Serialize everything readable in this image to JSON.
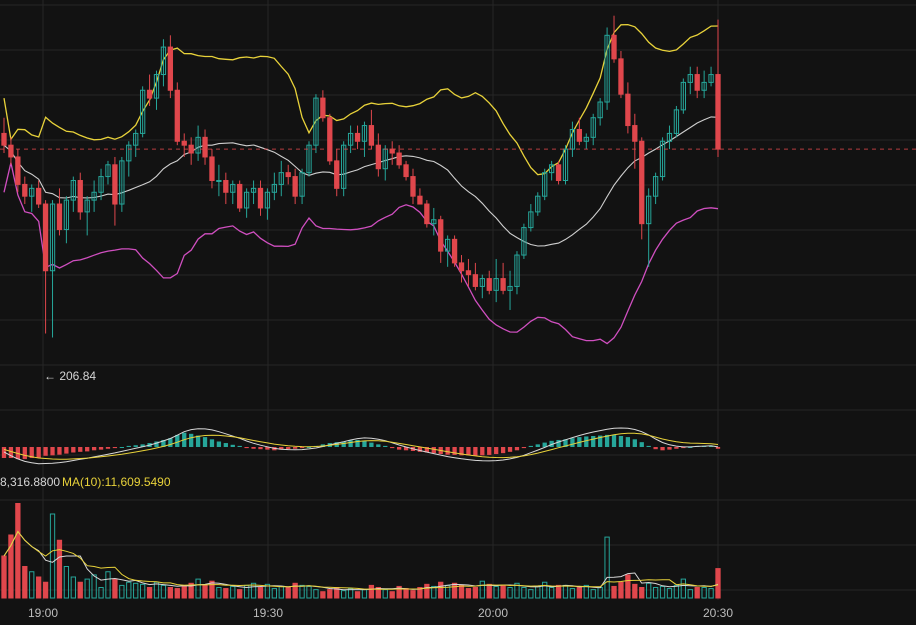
{
  "colors": {
    "background": "#121212",
    "grid": "#262626",
    "up": "#26a69a",
    "down": "#e0474c",
    "bb_upper": "#e8d23a",
    "bb_mid": "#cfcfcf",
    "bb_lower": "#d04fc0",
    "last_price_line": "#e0474c"
  },
  "chart_data": [
    {
      "type": "candlestick",
      "indicator": "Bollinger Bands",
      "x_axis_ticks": [
        "19:00",
        "19:30",
        "20:00",
        "20:30"
      ],
      "price_ylim": [
        203,
        224
      ],
      "min_price_marker": {
        "text": "← 206.84",
        "value": 206.84,
        "time_index": 7
      },
      "last_price": 216.4,
      "ohlc": [
        [
          217.2,
          218.0,
          216.2,
          216.6
        ],
        [
          216.6,
          217.0,
          215.6,
          216.0
        ],
        [
          216.0,
          216.4,
          214.2,
          214.6
        ],
        [
          214.6,
          215.0,
          213.6,
          214.0
        ],
        [
          214.0,
          214.6,
          213.2,
          214.4
        ],
        [
          214.4,
          214.8,
          213.4,
          213.6
        ],
        [
          213.6,
          213.8,
          207.0,
          210.2
        ],
        [
          210.2,
          213.8,
          206.8,
          213.6
        ],
        [
          213.6,
          214.4,
          212.0,
          212.3
        ],
        [
          212.3,
          214.0,
          211.6,
          213.8
        ],
        [
          213.8,
          215.0,
          213.2,
          214.8
        ],
        [
          214.8,
          215.2,
          212.8,
          213.2
        ],
        [
          213.2,
          214.0,
          212.0,
          213.8
        ],
        [
          213.8,
          214.8,
          213.2,
          214.2
        ],
        [
          214.2,
          215.4,
          213.8,
          215.0
        ],
        [
          215.0,
          215.8,
          214.6,
          215.6
        ],
        [
          215.6,
          216.0,
          212.5,
          213.6
        ],
        [
          213.6,
          216.0,
          213.2,
          215.8
        ],
        [
          215.8,
          216.8,
          215.0,
          216.6
        ],
        [
          216.6,
          217.4,
          216.0,
          217.2
        ],
        [
          217.2,
          219.6,
          217.0,
          219.4
        ],
        [
          219.4,
          220.2,
          218.6,
          219.0
        ],
        [
          219.0,
          220.4,
          218.4,
          220.2
        ],
        [
          220.2,
          222.0,
          219.6,
          221.6
        ],
        [
          221.6,
          222.2,
          219.0,
          219.4
        ],
        [
          219.4,
          219.8,
          216.6,
          216.8
        ],
        [
          216.8,
          217.2,
          216.0,
          216.6
        ],
        [
          216.6,
          217.0,
          215.6,
          216.2
        ],
        [
          216.2,
          217.6,
          215.8,
          217.0
        ],
        [
          217.0,
          217.4,
          215.6,
          216.0
        ],
        [
          216.0,
          216.4,
          214.4,
          214.8
        ],
        [
          214.8,
          215.6,
          214.0,
          214.8
        ],
        [
          214.8,
          215.2,
          213.6,
          214.2
        ],
        [
          214.2,
          214.8,
          213.6,
          214.6
        ],
        [
          214.6,
          214.8,
          213.2,
          213.4
        ],
        [
          213.4,
          214.4,
          212.9,
          214.2
        ],
        [
          214.2,
          214.8,
          213.6,
          214.4
        ],
        [
          214.4,
          214.8,
          213.0,
          213.4
        ],
        [
          213.4,
          214.4,
          212.8,
          214.2
        ],
        [
          214.2,
          215.2,
          213.8,
          214.6
        ],
        [
          214.6,
          215.8,
          214.0,
          215.2
        ],
        [
          215.2,
          215.6,
          214.6,
          215.0
        ],
        [
          215.0,
          215.4,
          213.6,
          214.0
        ],
        [
          214.0,
          215.4,
          213.6,
          215.2
        ],
        [
          215.2,
          216.8,
          215.0,
          216.6
        ],
        [
          216.6,
          219.2,
          216.2,
          219.0
        ],
        [
          219.0,
          219.4,
          217.8,
          218.0
        ],
        [
          218.0,
          218.2,
          215.6,
          215.8
        ],
        [
          215.8,
          216.4,
          214.0,
          214.4
        ],
        [
          214.4,
          216.8,
          214.0,
          216.6
        ],
        [
          216.6,
          217.6,
          216.2,
          217.2
        ],
        [
          217.2,
          217.6,
          216.4,
          216.8
        ],
        [
          216.8,
          217.8,
          216.0,
          217.6
        ],
        [
          217.6,
          218.4,
          216.4,
          216.6
        ],
        [
          216.6,
          217.2,
          215.0,
          215.4
        ],
        [
          215.4,
          216.6,
          214.8,
          216.4
        ],
        [
          216.4,
          216.8,
          215.6,
          216.2
        ],
        [
          216.2,
          216.6,
          215.4,
          215.6
        ],
        [
          215.6,
          215.8,
          214.8,
          215.0
        ],
        [
          215.0,
          215.4,
          213.6,
          214.0
        ],
        [
          214.0,
          214.4,
          213.6,
          213.6
        ],
        [
          213.6,
          213.8,
          212.4,
          212.6
        ],
        [
          212.6,
          213.4,
          212.0,
          212.8
        ],
        [
          212.8,
          213.0,
          210.6,
          211.2
        ],
        [
          211.2,
          212.0,
          210.4,
          211.8
        ],
        [
          211.8,
          212.0,
          210.4,
          210.6
        ],
        [
          210.6,
          211.0,
          209.6,
          210.2
        ],
        [
          210.2,
          210.8,
          209.4,
          210.0
        ],
        [
          210.0,
          210.6,
          209.2,
          209.4
        ],
        [
          209.4,
          210.0,
          208.8,
          209.8
        ],
        [
          209.8,
          210.2,
          209.0,
          209.2
        ],
        [
          209.2,
          210.8,
          208.6,
          209.8
        ],
        [
          209.8,
          210.6,
          209.0,
          209.2
        ],
        [
          209.2,
          210.2,
          208.2,
          209.4
        ],
        [
          209.4,
          211.2,
          209.0,
          211.0
        ],
        [
          211.0,
          212.6,
          210.8,
          212.4
        ],
        [
          212.4,
          213.6,
          212.2,
          213.2
        ],
        [
          213.2,
          214.2,
          213.0,
          214.0
        ],
        [
          214.0,
          215.4,
          213.8,
          215.2
        ],
        [
          215.2,
          215.8,
          214.8,
          215.6
        ],
        [
          215.6,
          215.8,
          214.6,
          214.8
        ],
        [
          214.8,
          216.6,
          214.6,
          216.4
        ],
        [
          216.4,
          217.8,
          216.0,
          217.4
        ],
        [
          217.4,
          218.0,
          216.6,
          216.8
        ],
        [
          216.8,
          217.2,
          216.4,
          217.0
        ],
        [
          217.0,
          218.2,
          216.6,
          218.0
        ],
        [
          218.0,
          219.0,
          217.6,
          218.8
        ],
        [
          218.8,
          222.6,
          218.4,
          222.2
        ],
        [
          222.2,
          223.2,
          220.8,
          221.0
        ],
        [
          221.0,
          221.4,
          219.0,
          219.2
        ],
        [
          219.2,
          219.8,
          217.2,
          217.6
        ],
        [
          217.6,
          218.2,
          215.4,
          216.8
        ],
        [
          216.8,
          217.0,
          211.8,
          212.6
        ],
        [
          212.6,
          214.4,
          210.4,
          214.0
        ],
        [
          214.0,
          215.2,
          213.6,
          215.0
        ],
        [
          215.0,
          217.0,
          214.8,
          216.8
        ],
        [
          216.8,
          217.6,
          216.4,
          217.2
        ],
        [
          217.2,
          218.6,
          217.0,
          218.4
        ],
        [
          218.4,
          220.0,
          218.2,
          219.8
        ],
        [
          219.8,
          220.6,
          219.2,
          220.2
        ],
        [
          220.2,
          220.6,
          219.0,
          219.4
        ],
        [
          219.4,
          220.4,
          219.0,
          219.8
        ],
        [
          219.8,
          220.6,
          219.6,
          220.2
        ],
        [
          220.2,
          223.0,
          216.0,
          216.4
        ]
      ]
    },
    {
      "type": "bar+line",
      "indicator": "MACD",
      "histogram": [
        -0.5,
        -0.5,
        -0.55,
        -0.55,
        -0.5,
        -0.5,
        -0.4,
        -0.38,
        -0.35,
        -0.3,
        -0.25,
        -0.22,
        -0.2,
        -0.15,
        -0.12,
        -0.08,
        -0.05,
        0.0,
        0.05,
        0.08,
        0.12,
        0.18,
        0.25,
        0.32,
        0.4,
        0.55,
        0.65,
        0.6,
        0.52,
        0.45,
        0.35,
        0.25,
        0.18,
        0.1,
        0.05,
        -0.05,
        -0.08,
        -0.1,
        -0.12,
        -0.15,
        -0.12,
        -0.1,
        -0.08,
        -0.05,
        0.0,
        0.05,
        0.12,
        0.18,
        0.22,
        0.25,
        0.3,
        0.32,
        0.28,
        0.2,
        0.12,
        0.05,
        -0.05,
        -0.12,
        -0.15,
        -0.18,
        -0.22,
        -0.25,
        -0.28,
        -0.32,
        -0.35,
        -0.36,
        -0.38,
        -0.38,
        -0.4,
        -0.38,
        -0.36,
        -0.32,
        -0.28,
        -0.22,
        -0.15,
        -0.05,
        0.05,
        0.12,
        0.2,
        0.28,
        0.32,
        0.35,
        0.4,
        0.45,
        0.48,
        0.5,
        0.52,
        0.55,
        0.55,
        0.5,
        0.45,
        0.35,
        0.22,
        0.05,
        -0.1,
        -0.15,
        -0.12,
        -0.08,
        -0.05,
        0.0,
        0.05,
        0.05,
        0.05,
        -0.08
      ],
      "macd_line_label": "",
      "signal_line_label": ""
    },
    {
      "type": "bar+line",
      "indicator": "Volume",
      "labels": {
        "ma5_partial": "8,316.8800",
        "ma10": "MA(10):11,609.5490"
      },
      "volume": [
        40,
        60,
        90,
        30,
        25,
        20,
        15,
        80,
        55,
        30,
        20,
        15,
        18,
        22,
        10,
        25,
        18,
        12,
        15,
        14,
        13,
        10,
        15,
        12,
        10,
        9,
        12,
        14,
        18,
        12,
        16,
        10,
        9,
        11,
        8,
        12,
        14,
        10,
        13,
        9,
        11,
        10,
        14,
        12,
        11,
        8,
        6,
        8,
        10,
        7,
        9,
        6,
        8,
        12,
        10,
        8,
        6,
        11,
        9,
        7,
        10,
        13,
        11,
        15,
        12,
        14,
        12,
        9,
        10,
        16,
        13,
        11,
        12,
        10,
        14,
        10,
        8,
        11,
        15,
        10,
        12,
        12,
        9,
        10,
        12,
        8,
        10,
        58,
        11,
        15,
        22,
        13,
        10,
        14,
        10,
        11,
        9,
        12,
        18,
        8,
        10,
        10,
        9,
        28
      ],
      "volume_ylim": [
        0,
        100
      ]
    }
  ]
}
